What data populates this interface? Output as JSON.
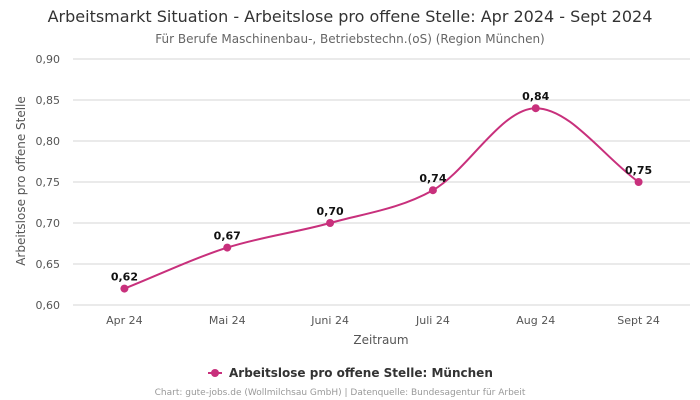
{
  "chart_data": {
    "type": "line",
    "title": "Arbeitsmarkt Situation - Arbeitslose pro offene Stelle: Apr 2024 - Sept 2024",
    "subtitle": "Für Berufe Maschinenbau-, Betriebstechn.(oS) (Region München)",
    "xlabel": "Zeitraum",
    "ylabel": "Arbeitslose pro offene Stelle",
    "categories": [
      "Apr 24",
      "Mai 24",
      "Juni 24",
      "Juli 24",
      "Aug 24",
      "Sept 24"
    ],
    "series": [
      {
        "name": "Arbeitslose pro offene Stelle: München",
        "values": [
          0.62,
          0.67,
          0.7,
          0.74,
          0.84,
          0.75
        ],
        "labels": [
          "0,62",
          "0,67",
          "0,70",
          "0,74",
          "0,84",
          "0,75"
        ],
        "color": "#c8307c"
      }
    ],
    "ylim": [
      0.6,
      0.9
    ],
    "yticks": [
      0.6,
      0.65,
      0.7,
      0.75,
      0.8,
      0.85,
      0.9
    ],
    "ytick_labels": [
      "0,60",
      "0,65",
      "0,70",
      "0,75",
      "0,80",
      "0,85",
      "0,90"
    ],
    "grid": true,
    "legend_position": "bottom-center",
    "credit": "Chart: gute-jobs.de (Wollmilchsau GmbH) | Datenquelle: Bundesagentur für Arbeit"
  }
}
